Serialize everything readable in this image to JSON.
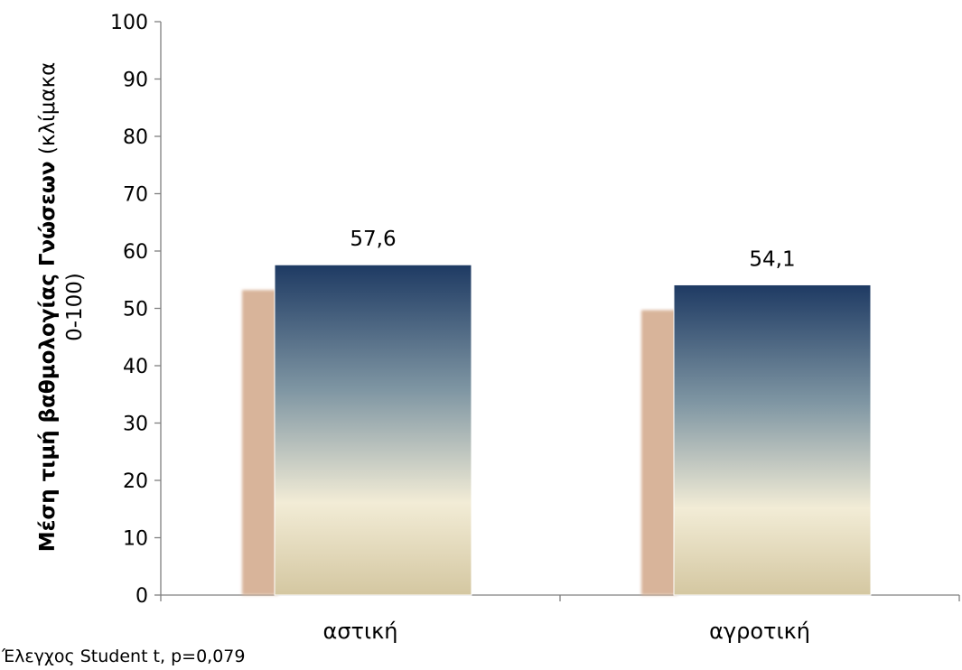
{
  "chart_data": {
    "type": "bar",
    "categories": [
      "αστική",
      "αγροτική"
    ],
    "values": [
      57.6,
      54.1
    ],
    "data_labels": [
      "57,6",
      "54,1"
    ],
    "title": "",
    "xlabel": "",
    "ylabel_bold": "Μέση τιμή βαθμολογίας Γνώσεων",
    "ylabel_rest": " (κλίμακα",
    "ylabel_line2": "0-100)",
    "ylim": [
      0,
      100
    ],
    "yticks": [
      0,
      10,
      20,
      30,
      40,
      50,
      60,
      70,
      80,
      90,
      100
    ],
    "grid": false,
    "legend": "none",
    "bar_gradient": [
      "#1e3a63",
      "#7f96a3",
      "#f2ecd6",
      "#d4c7a1"
    ],
    "shadow_color": "#d8b49a"
  },
  "footnote": "Έλεγχος Student t, p=0,079"
}
